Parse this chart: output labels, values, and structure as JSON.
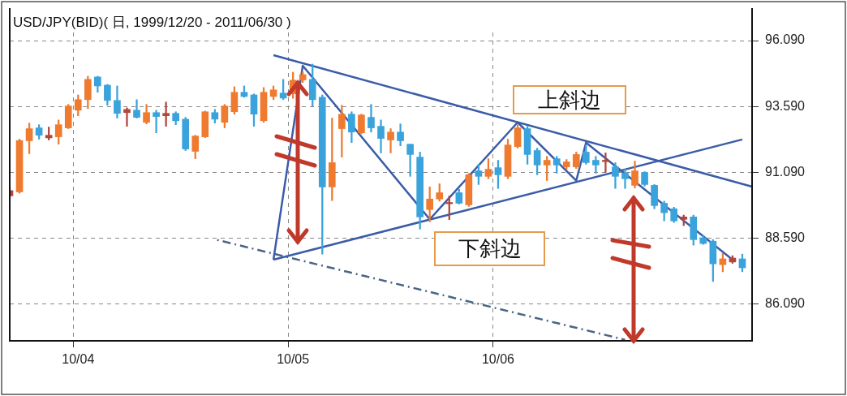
{
  "chart_data": {
    "type": "candlestick",
    "title": "USD/JPY(BID)( 日, 1999/12/20 - 2011/06/30 )",
    "categories": [
      null,
      null,
      null,
      null,
      null,
      null,
      null,
      "10/04",
      null,
      null,
      null,
      null,
      null,
      null,
      null,
      null,
      null,
      null,
      null,
      null,
      null,
      null,
      null,
      null,
      null,
      null,
      null,
      null,
      null,
      "10/05",
      null,
      null,
      null,
      null,
      null,
      null,
      null,
      null,
      null,
      null,
      null,
      null,
      null,
      null,
      null,
      null,
      null,
      null,
      null,
      null,
      "10/06",
      null,
      null,
      null,
      null,
      null,
      null,
      null,
      null,
      null,
      null,
      null,
      null,
      null,
      null,
      null,
      null,
      null,
      null,
      null,
      null,
      null,
      null,
      null,
      null,
      null,
      null
    ],
    "ohlc": [
      [
        90.2,
        90.5,
        90.1,
        90.4
      ],
      [
        90.35,
        92.35,
        90.3,
        92.3
      ],
      [
        92.29,
        92.96,
        91.8,
        92.75
      ],
      [
        92.78,
        92.9,
        92.35,
        92.5
      ],
      [
        92.5,
        92.81,
        92.32,
        92.4
      ],
      [
        92.44,
        93.08,
        92.16,
        92.9
      ],
      [
        92.78,
        93.67,
        92.75,
        93.61
      ],
      [
        93.45,
        94.03,
        93.24,
        93.85
      ],
      [
        93.85,
        94.74,
        93.51,
        94.62
      ],
      [
        94.71,
        94.74,
        94.13,
        94.37
      ],
      [
        94.4,
        94.43,
        93.64,
        93.82
      ],
      [
        93.82,
        94.37,
        93.15,
        93.33
      ],
      [
        93.36,
        93.54,
        92.84,
        93.48
      ],
      [
        93.45,
        93.85,
        93.15,
        93.18
      ],
      [
        92.99,
        93.67,
        92.93,
        93.36
      ],
      [
        93.36,
        93.45,
        92.59,
        93.21
      ],
      [
        93.24,
        93.76,
        92.84,
        93.33
      ],
      [
        93.33,
        93.39,
        92.9,
        93.05
      ],
      [
        93.11,
        93.18,
        91.92,
        91.98
      ],
      [
        91.89,
        92.5,
        91.61,
        92.47
      ],
      [
        92.44,
        93.42,
        92.41,
        93.39
      ],
      [
        93.36,
        93.48,
        92.96,
        93.11
      ],
      [
        92.99,
        93.67,
        92.78,
        93.61
      ],
      [
        93.39,
        94.34,
        93.3,
        94.13
      ],
      [
        94.13,
        94.37,
        93.94,
        93.97
      ],
      [
        94.03,
        94.07,
        92.84,
        93.3
      ],
      [
        93.05,
        94.31,
        92.99,
        94.13
      ],
      [
        93.97,
        94.37,
        93.85,
        94.22
      ],
      [
        94.1,
        94.62,
        93.85,
        93.91
      ],
      [
        94.07,
        94.89,
        93.9,
        94.59
      ],
      [
        94.6,
        94.9,
        94.5,
        94.8
      ],
      [
        94.62,
        95.2,
        93.61,
        93.85
      ],
      [
        93.94,
        94.03,
        87.99,
        90.54
      ],
      [
        90.54,
        93.15,
        90.02,
        91.46
      ],
      [
        92.75,
        93.64,
        91.67,
        93.3
      ],
      [
        93.3,
        93.39,
        92.22,
        92.62
      ],
      [
        92.59,
        93.3,
        92.55,
        93.27
      ],
      [
        93.18,
        93.67,
        92.62,
        92.78
      ],
      [
        92.84,
        93.08,
        91.83,
        92.38
      ],
      [
        92.32,
        92.75,
        91.83,
        92.62
      ],
      [
        92.62,
        92.93,
        92.1,
        92.29
      ],
      [
        92.16,
        92.16,
        90.94,
        91.77
      ],
      [
        91.67,
        91.86,
        88.94,
        89.4
      ],
      [
        89.68,
        90.54,
        89.22,
        90.08
      ],
      [
        90.08,
        90.66,
        90.0,
        90.32
      ],
      [
        89.9,
        90.2,
        89.3,
        89.95
      ],
      [
        90.32,
        90.45,
        89.89,
        89.92
      ],
      [
        89.86,
        91.05,
        89.8,
        91.0
      ],
      [
        91.15,
        91.4,
        90.63,
        90.94
      ],
      [
        90.94,
        91.61,
        90.85,
        91.21
      ],
      [
        91.27,
        91.55,
        90.48,
        91.0
      ],
      [
        90.94,
        92.35,
        90.85,
        92.13
      ],
      [
        92.07,
        92.9,
        92.01,
        92.78
      ],
      [
        92.75,
        92.84,
        91.4,
        91.77
      ],
      [
        91.92,
        92.01,
        91.0,
        91.37
      ],
      [
        91.37,
        91.7,
        90.78,
        91.55
      ],
      [
        91.61,
        91.7,
        91.06,
        91.37
      ],
      [
        91.3,
        91.58,
        91.21,
        91.49
      ],
      [
        91.3,
        91.86,
        91.24,
        91.77
      ],
      [
        91.86,
        92.13,
        91.4,
        91.46
      ],
      [
        91.55,
        91.7,
        91.06,
        91.37
      ],
      [
        91.5,
        91.83,
        91.09,
        91.55
      ],
      [
        91.3,
        91.46,
        90.48,
        90.94
      ],
      [
        91.06,
        91.21,
        90.48,
        90.85
      ],
      [
        90.6,
        91.52,
        90.5,
        91.15
      ],
      [
        91.09,
        91.12,
        90.57,
        90.63
      ],
      [
        90.6,
        90.63,
        89.71,
        89.83
      ],
      [
        89.92,
        90.0,
        89.25,
        89.56
      ],
      [
        89.71,
        89.77,
        89.19,
        89.25
      ],
      [
        89.31,
        89.47,
        89.07,
        89.4
      ],
      [
        89.4,
        89.47,
        88.33,
        88.54
      ],
      [
        88.61,
        88.7,
        88.36,
        88.39
      ],
      [
        88.48,
        88.54,
        86.95,
        87.62
      ],
      [
        87.59,
        88.02,
        87.32,
        87.81
      ],
      [
        87.69,
        87.93,
        87.64,
        87.84
      ],
      [
        87.81,
        87.99,
        87.32,
        87.47
      ],
      null
    ],
    "colors": [
      "#b0463c",
      "#ee7b30",
      "#ee7b30",
      "#3aa3dc",
      "#b0463c",
      "#ee7b30",
      "#ee7b30",
      "#ee7b30",
      "#ee7b30",
      "#3aa3dc",
      "#3aa3dc",
      "#3aa3dc",
      "#b0463c",
      "#3aa3dc",
      "#ee7b30",
      "#3aa3dc",
      "#b0463c",
      "#3aa3dc",
      "#3aa3dc",
      "#ee7b30",
      "#ee7b30",
      "#3aa3dc",
      "#ee7b30",
      "#ee7b30",
      "#3aa3dc",
      "#3aa3dc",
      "#ee7b30",
      "#ee7b30",
      "#3aa3dc",
      "#ee7b30",
      "#ee7b30",
      "#3aa3dc",
      "#3aa3dc",
      "#ee7b30",
      "#ee7b30",
      "#3aa3dc",
      "#ee7b30",
      "#3aa3dc",
      "#3aa3dc",
      "#ee7b30",
      "#3aa3dc",
      "#3aa3dc",
      "#3aa3dc",
      "#ee7b30",
      "#ee7b30",
      "#b0463c",
      "#3aa3dc",
      "#ee7b30",
      "#3aa3dc",
      "#ee7b30",
      "#3aa3dc",
      "#ee7b30",
      "#ee7b30",
      "#3aa3dc",
      "#3aa3dc",
      "#ee7b30",
      "#3aa3dc",
      "#ee7b30",
      "#ee7b30",
      "#3aa3dc",
      "#3aa3dc",
      "#b0463c",
      "#3aa3dc",
      "#3aa3dc",
      "#ee7b30",
      "#3aa3dc",
      "#3aa3dc",
      "#3aa3dc",
      "#3aa3dc",
      "#b0463c",
      "#3aa3dc",
      "#3aa3dc",
      "#3aa3dc",
      "#ee7b30",
      "#b0463c",
      "#3aa3dc",
      null
    ],
    "ylim": [
      84.7,
      96.4
    ],
    "yticks": [
      {
        "value": 86.09,
        "label": "86.090"
      },
      {
        "value": 88.59,
        "label": "88.590"
      },
      {
        "value": 91.09,
        "label": "91.090"
      },
      {
        "value": 93.59,
        "label": "93.590"
      },
      {
        "value": 96.09,
        "label": "96.090"
      }
    ],
    "grid": true,
    "series": [
      {
        "type": "line",
        "color": "#3b5ca8",
        "values": [
          null,
          null,
          null,
          null,
          null,
          null,
          null,
          null,
          null,
          null,
          null,
          null,
          null,
          null,
          null,
          null,
          null,
          null,
          null,
          null,
          null,
          null,
          null,
          null,
          null,
          null,
          null,
          95.54,
          null,
          null,
          null,
          null,
          null,
          null,
          null,
          null,
          null,
          null,
          null,
          null,
          null,
          null,
          null,
          null,
          null,
          null,
          null,
          null,
          null,
          null,
          null,
          null,
          null,
          null,
          null,
          null,
          null,
          null,
          null,
          null,
          null,
          null,
          null,
          null,
          null,
          null,
          null,
          null,
          null,
          null,
          null,
          null,
          null,
          null,
          null,
          null,
          90.55
        ]
      },
      {
        "type": "line",
        "color": "#3b5ca8",
        "values": [
          null,
          null,
          null,
          null,
          null,
          null,
          null,
          null,
          null,
          null,
          null,
          null,
          null,
          null,
          null,
          null,
          null,
          null,
          null,
          null,
          null,
          null,
          null,
          null,
          null,
          null,
          null,
          87.78,
          null,
          null,
          null,
          null,
          null,
          null,
          null,
          null,
          null,
          null,
          null,
          null,
          null,
          null,
          null,
          null,
          null,
          null,
          null,
          null,
          null,
          null,
          null,
          null,
          null,
          null,
          null,
          null,
          null,
          null,
          null,
          null,
          null,
          null,
          null,
          null,
          null,
          null,
          null,
          null,
          null,
          null,
          null,
          null,
          null,
          null,
          null,
          92.34,
          null
        ]
      },
      {
        "type": "line",
        "color": "#3b5ca8",
        "values": [
          null,
          null,
          null,
          null,
          null,
          null,
          null,
          null,
          null,
          null,
          null,
          null,
          null,
          null,
          null,
          null,
          null,
          null,
          null,
          null,
          null,
          null,
          null,
          null,
          null,
          null,
          null,
          87.78,
          null,
          null,
          95.14,
          null,
          null,
          null,
          null,
          null,
          null,
          null,
          null,
          null,
          null,
          null,
          null,
          89.31,
          null,
          null,
          null,
          null,
          null,
          null,
          null,
          null,
          92.99,
          null,
          null,
          null,
          null,
          null,
          90.78,
          92.22,
          null,
          null,
          null,
          null,
          null,
          null,
          null,
          null,
          null,
          null,
          null,
          null,
          null,
          null,
          87.78,
          null,
          null
        ]
      },
      {
        "type": "line",
        "color": "#4a6585",
        "line_style": "dashed",
        "values": [
          null,
          null,
          null,
          null,
          null,
          null,
          null,
          null,
          null,
          null,
          null,
          null,
          null,
          null,
          null,
          null,
          null,
          null,
          null,
          null,
          null,
          88.55,
          null,
          null,
          null,
          null,
          null,
          null,
          null,
          null,
          null,
          null,
          null,
          null,
          null,
          null,
          null,
          null,
          null,
          null,
          null,
          null,
          null,
          null,
          null,
          null,
          null,
          null,
          null,
          null,
          null,
          null,
          null,
          null,
          null,
          null,
          null,
          null,
          null,
          null,
          null,
          null,
          null,
          84.74,
          null,
          null,
          null,
          null,
          null,
          null,
          null,
          null,
          null,
          null,
          null,
          null,
          null
        ]
      }
    ],
    "annotations": [
      "上斜边",
      "下斜边"
    ]
  }
}
